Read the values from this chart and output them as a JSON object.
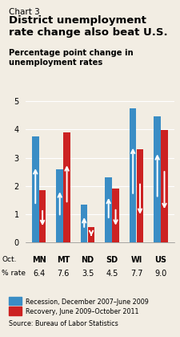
{
  "chart_label": "Chart 3",
  "title": "District unemployment\nrate change also beat U.S.",
  "subtitle": "Percentage point change in\nunemployment rates",
  "categories": [
    "MN",
    "MT",
    "ND",
    "SD",
    "WI",
    "US"
  ],
  "oct_rates": [
    "6.4",
    "7.6",
    "3.5",
    "4.5",
    "7.7",
    "9.0"
  ],
  "recession_values": [
    3.75,
    2.6,
    1.35,
    2.3,
    4.75,
    4.45
  ],
  "recovery_values": [
    1.85,
    3.9,
    0.55,
    1.9,
    3.3,
    3.98
  ],
  "blue_color": "#3A8DC5",
  "red_color": "#CC2222",
  "bar_width": 0.28,
  "bar_gap": 0.01,
  "ylim": [
    0,
    5
  ],
  "yticks": [
    0,
    1,
    2,
    3,
    4,
    5
  ],
  "legend_blue": "Recession, December 2007–June 2009",
  "legend_red": "Recovery, June 2009–October 2011",
  "source": "Source: Bureau of Labor Statistics",
  "bg_color": "#F2EDE3"
}
